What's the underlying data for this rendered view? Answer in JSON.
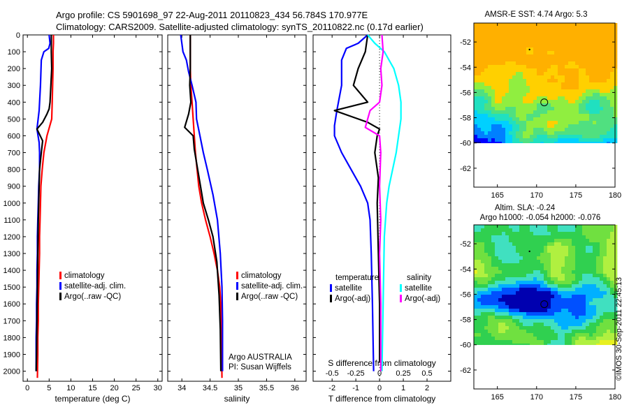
{
  "header": {
    "line1": "Argo profile: CS 5901698_97 22-Aug-2011 20110823_434 56.784S 170.977E",
    "line2": "Climatology: CARS2009. Satellite-adjusted climatology: synTS_20110822.nc (0.17d earlier)"
  },
  "colors": {
    "climatology": "#ff0000",
    "satellite": "#0000ff",
    "argo": "#000000",
    "sal_satellite": "#00ffff",
    "sal_argo": "#ff00ff"
  },
  "depth_axis": {
    "ticks": [
      0,
      100,
      200,
      300,
      400,
      500,
      600,
      700,
      800,
      900,
      1000,
      1100,
      1200,
      1300,
      1400,
      1500,
      1600,
      1700,
      1800,
      1900,
      2000
    ],
    "ylim": [
      0,
      2060
    ]
  },
  "chart_data": [
    {
      "id": "temperature",
      "type": "line",
      "xlabel": "temperature (deg C)",
      "xlim": [
        -1,
        31
      ],
      "xticks": [
        0,
        5,
        10,
        15,
        20,
        25,
        30
      ],
      "legend": [
        "climatology",
        "satellite-adj. clim.",
        "Argo(..raw -QC)"
      ],
      "series": [
        {
          "name": "climatology",
          "color": "#ff0000",
          "x": [
            6.0,
            6.0,
            5.9,
            5.9,
            5.8,
            5.7,
            5.6,
            4.5,
            3.8,
            3.4,
            3.1,
            3.0,
            2.9,
            2.8,
            2.8,
            2.7,
            2.6,
            2.5,
            2.5,
            2.4,
            2.4,
            2.3
          ],
          "y": [
            0,
            50,
            100,
            200,
            300,
            400,
            500,
            600,
            700,
            800,
            900,
            1000,
            1100,
            1200,
            1300,
            1400,
            1500,
            1600,
            1700,
            1800,
            1900,
            2040
          ]
        },
        {
          "name": "satellite-adj. clim.",
          "color": "#0000ff",
          "x": [
            5.0,
            5.2,
            4.9,
            3.8,
            3.2,
            3.0,
            2.7,
            2.2,
            2.7,
            2.8,
            2.8,
            2.6,
            2.5,
            2.4,
            2.3,
            2.3,
            2.2,
            2.2,
            2.1,
            2.1,
            2.0,
            2.0
          ],
          "y": [
            0,
            50,
            80,
            100,
            150,
            300,
            450,
            560,
            640,
            700,
            800,
            900,
            1000,
            1100,
            1200,
            1300,
            1400,
            1500,
            1600,
            1700,
            1800,
            2000
          ]
        },
        {
          "name": "Argo(..raw -QC)",
          "color": "#000000",
          "x": [
            5.5,
            5.5,
            5.6,
            5.4,
            5.2,
            5.0,
            4.5,
            3.5,
            2.2,
            3.5,
            3.2,
            2.8,
            2.7,
            2.5,
            2.4,
            2.3,
            2.2,
            2.1,
            2.0
          ],
          "y": [
            0,
            100,
            200,
            300,
            400,
            440,
            470,
            520,
            560,
            630,
            700,
            800,
            900,
            1100,
            1300,
            1500,
            1700,
            1900,
            2000
          ]
        }
      ]
    },
    {
      "id": "salinity",
      "type": "line",
      "xlabel": "salinity",
      "xlim": [
        33.75,
        36.2
      ],
      "xticks": [
        34,
        34.5,
        35,
        35.5,
        36
      ],
      "legend": [
        "climatology",
        "satellite-adj. clim.",
        "Argo(..raw -QC)"
      ],
      "footer_lines": [
        "Argo AUSTRALIA",
        "PI: Susan Wijffels"
      ],
      "series": [
        {
          "name": "climatology",
          "color": "#ff0000",
          "x": [
            34.15,
            34.15,
            34.15,
            34.16,
            34.18,
            34.2,
            34.22,
            34.24,
            34.27,
            34.3,
            34.35,
            34.42,
            34.5,
            34.57,
            34.63,
            34.67,
            34.69,
            34.7,
            34.71
          ],
          "y": [
            0,
            100,
            200,
            300,
            400,
            500,
            600,
            700,
            800,
            900,
            1000,
            1100,
            1200,
            1300,
            1400,
            1500,
            1600,
            1800,
            2040
          ]
        },
        {
          "name": "satellite-adj. clim.",
          "color": "#0000ff",
          "x": [
            33.98,
            34.0,
            34.02,
            34.08,
            34.12,
            34.18,
            34.25,
            34.26,
            34.32,
            34.38,
            34.45,
            34.55,
            34.63,
            34.68,
            34.71,
            34.72,
            34.72
          ],
          "y": [
            0,
            50,
            100,
            150,
            220,
            300,
            400,
            500,
            600,
            700,
            800,
            950,
            1100,
            1300,
            1500,
            1700,
            2000
          ]
        },
        {
          "name": "Argo(..raw -QC)",
          "color": "#000000",
          "x": [
            34.15,
            34.15,
            34.15,
            34.14,
            34.16,
            34.12,
            34.05,
            34.2,
            34.22,
            34.28,
            34.33,
            34.38,
            34.47,
            34.55,
            34.62,
            34.66,
            34.68,
            34.69
          ],
          "y": [
            0,
            100,
            200,
            300,
            400,
            470,
            550,
            600,
            680,
            800,
            900,
            1000,
            1100,
            1200,
            1350,
            1550,
            1750,
            2000
          ]
        }
      ]
    },
    {
      "id": "difference",
      "type": "line",
      "xlabel": "T difference from climatology",
      "xlim": [
        -2.8,
        3.0
      ],
      "xticks": [
        -2,
        -1,
        0,
        1,
        2
      ],
      "top_xlabel": "S difference from climatology",
      "top_xticks": [
        "-0.5",
        "-0.25",
        "0",
        "0.25",
        "0.5"
      ],
      "legend_temperature": {
        "heading": "temperature",
        "items": [
          "satellite",
          "Argo(-adj)"
        ]
      },
      "legend_salinity": {
        "heading": "salinity",
        "items": [
          "satellite",
          "Argo(-adj)"
        ]
      },
      "series": [
        {
          "name": "temperature satellite",
          "color": "#0000ff",
          "x": [
            -0.5,
            -0.9,
            -1.4,
            -1.6,
            -1.6,
            -1.8,
            -1.9,
            -1.9,
            -1.6,
            -1.2,
            -0.8,
            -0.5,
            -0.4,
            -0.35,
            -0.3,
            -0.25
          ],
          "y": [
            0,
            50,
            80,
            150,
            300,
            450,
            540,
            600,
            700,
            800,
            900,
            1000,
            1100,
            1300,
            1600,
            2000
          ]
        },
        {
          "name": "temperature Argo(-adj)",
          "color": "#000000",
          "x": [
            -0.5,
            -0.6,
            -0.9,
            -1.1,
            -0.5,
            -1.9,
            -0.5,
            0.0,
            -0.1,
            -0.2,
            -0.05,
            -0.1,
            -0.05,
            0.0,
            0.0
          ],
          "y": [
            0,
            100,
            200,
            300,
            400,
            450,
            520,
            560,
            600,
            700,
            850,
            1000,
            1300,
            1600,
            1950
          ]
        },
        {
          "name": "salinity satellite",
          "color": "#00ffff",
          "x": [
            -0.5,
            -0.2,
            0.2,
            0.6,
            0.8,
            0.9,
            0.9,
            0.8,
            0.7,
            0.55,
            0.4,
            0.3,
            0.2,
            0.15,
            0.1
          ],
          "y": [
            0,
            50,
            100,
            200,
            300,
            400,
            500,
            600,
            700,
            800,
            900,
            1000,
            1200,
            1600,
            2000
          ]
        },
        {
          "name": "salinity Argo(-adj)",
          "color": "#ff00ff",
          "x": [
            0.1,
            0.15,
            0.05,
            0.1,
            0.0,
            -0.4,
            -0.6,
            0.0,
            0.05,
            0.0,
            0.05,
            0.0,
            0.05,
            0.05,
            0.05
          ],
          "y": [
            0,
            100,
            200,
            300,
            400,
            450,
            550,
            600,
            700,
            900,
            1100,
            1300,
            1600,
            1800,
            2000
          ]
        }
      ]
    },
    {
      "id": "sst_map",
      "type": "heatmap",
      "title": "AMSR-E SST: 4.74  Argo: 5.3",
      "xlim": [
        162,
        180
      ],
      "ylim": [
        -63.5,
        -50.5
      ],
      "xticks": [
        165,
        170,
        175,
        180
      ],
      "yticks": [
        -52,
        -54,
        -56,
        -58,
        -60,
        -62
      ],
      "data_extent_y": [
        -60,
        -50.5
      ],
      "argo_position": {
        "lon": 170.977,
        "lat": -56.784
      },
      "palette": [
        "#00008f",
        "#0000ff",
        "#0080ff",
        "#00d0ff",
        "#20e0c0",
        "#50e080",
        "#90ee40",
        "#ffd000",
        "#ffb000"
      ]
    },
    {
      "id": "sla_map",
      "type": "heatmap",
      "title": "Altim. SLA: -0.24",
      "subtitle": "Argo h1000: -0.054 h2000: -0.076",
      "xlim": [
        162,
        180
      ],
      "ylim": [
        -63.5,
        -50.5
      ],
      "xticks": [
        165,
        170,
        175,
        180
      ],
      "yticks": [
        -52,
        -54,
        -56,
        -58,
        -60,
        -62
      ],
      "data_extent_y": [
        -60,
        -50.5
      ],
      "argo_position": {
        "lon": 170.977,
        "lat": -56.784
      },
      "palette": [
        "#0000b0",
        "#0050ff",
        "#00b0ff",
        "#40e0c0",
        "#30d050",
        "#70e040",
        "#b0f040",
        "#e8f020"
      ]
    }
  ],
  "credit": "©IMOS 30-Sep-2011 22:45:13"
}
